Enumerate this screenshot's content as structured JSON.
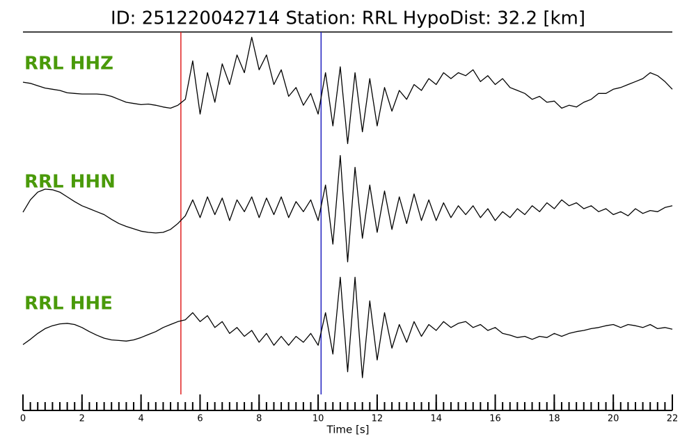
{
  "chart_data": {
    "type": "line",
    "title": "ID: 251220042714   Station: RRL   HypoDist:    32.2 [km]",
    "x_label": "Time [s]",
    "xlim": [
      0,
      22
    ],
    "xticks": [
      0,
      2,
      4,
      6,
      8,
      10,
      12,
      14,
      16,
      18,
      20,
      22
    ],
    "x_minor_step": 0.25,
    "ylim": [
      -1,
      1
    ],
    "label_color": "#4a9a0a",
    "markers": [
      {
        "x": 5.35,
        "color": "#e02020"
      },
      {
        "x": 10.1,
        "color": "#2020c0"
      }
    ],
    "x": [
      0,
      0.25,
      0.5,
      0.75,
      1,
      1.25,
      1.5,
      1.75,
      2,
      2.25,
      2.5,
      2.75,
      3,
      3.25,
      3.5,
      3.75,
      4,
      4.25,
      4.5,
      4.75,
      5,
      5.25,
      5.5,
      5.75,
      6,
      6.25,
      6.5,
      6.75,
      7,
      7.25,
      7.5,
      7.75,
      8,
      8.25,
      8.5,
      8.75,
      9,
      9.25,
      9.5,
      9.75,
      10,
      10.25,
      10.5,
      10.75,
      11,
      11.25,
      11.5,
      11.75,
      12,
      12.25,
      12.5,
      12.75,
      13,
      13.25,
      13.5,
      13.75,
      14,
      14.25,
      14.5,
      14.75,
      15,
      15.25,
      15.5,
      15.75,
      16,
      16.25,
      16.5,
      16.75,
      17,
      17.25,
      17.5,
      17.75,
      18,
      18.25,
      18.5,
      18.75,
      19,
      19.25,
      19.5,
      19.75,
      20,
      20.25,
      20.5,
      20.75,
      21,
      21.25,
      21.5,
      21.75,
      22
    ],
    "series": [
      {
        "name": "RRL HHZ",
        "color": "#000000",
        "values": [
          0.14,
          0.12,
          0.08,
          0.04,
          0.02,
          0.0,
          -0.04,
          -0.05,
          -0.06,
          -0.06,
          -0.06,
          -0.07,
          -0.1,
          -0.15,
          -0.2,
          -0.22,
          -0.24,
          -0.23,
          -0.25,
          -0.28,
          -0.3,
          -0.25,
          -0.15,
          0.5,
          -0.4,
          0.3,
          -0.2,
          0.45,
          0.1,
          0.6,
          0.3,
          0.9,
          0.35,
          0.6,
          0.1,
          0.35,
          -0.1,
          0.05,
          -0.25,
          -0.05,
          -0.4,
          0.3,
          -0.6,
          0.4,
          -0.9,
          0.3,
          -0.7,
          0.2,
          -0.6,
          0.05,
          -0.35,
          0.0,
          -0.15,
          0.1,
          0.0,
          0.2,
          0.1,
          0.3,
          0.2,
          0.3,
          0.25,
          0.35,
          0.15,
          0.25,
          0.1,
          0.2,
          0.05,
          0.0,
          -0.05,
          -0.15,
          -0.1,
          -0.2,
          -0.18,
          -0.3,
          -0.25,
          -0.28,
          -0.2,
          -0.15,
          -0.05,
          -0.05,
          0.02,
          0.05,
          0.1,
          0.15,
          0.2,
          0.3,
          0.25,
          0.15,
          0.02
        ]
      },
      {
        "name": "RRL HHN",
        "color": "#000000",
        "values": [
          -0.06,
          0.15,
          0.28,
          0.33,
          0.32,
          0.28,
          0.2,
          0.12,
          0.05,
          0.0,
          -0.05,
          -0.1,
          -0.18,
          -0.25,
          -0.3,
          -0.34,
          -0.38,
          -0.4,
          -0.41,
          -0.4,
          -0.35,
          -0.25,
          -0.12,
          0.15,
          -0.15,
          0.2,
          -0.1,
          0.18,
          -0.2,
          0.15,
          -0.05,
          0.2,
          -0.15,
          0.18,
          -0.1,
          0.2,
          -0.15,
          0.12,
          -0.05,
          0.15,
          -0.2,
          0.4,
          -0.6,
          0.9,
          -0.9,
          0.7,
          -0.5,
          0.4,
          -0.4,
          0.3,
          -0.35,
          0.2,
          -0.25,
          0.25,
          -0.2,
          0.15,
          -0.2,
          0.1,
          -0.15,
          0.05,
          -0.1,
          0.05,
          -0.15,
          0.0,
          -0.2,
          -0.05,
          -0.15,
          0.0,
          -0.1,
          0.05,
          -0.05,
          0.1,
          0.0,
          0.15,
          0.05,
          0.1,
          0.0,
          0.05,
          -0.05,
          0.0,
          -0.1,
          -0.05,
          -0.12,
          0.0,
          -0.08,
          -0.03,
          -0.05,
          0.02,
          0.05
        ]
      },
      {
        "name": "RRL HHE",
        "color": "#000000",
        "values": [
          -0.24,
          -0.15,
          -0.05,
          0.03,
          0.08,
          0.11,
          0.12,
          0.1,
          0.05,
          -0.02,
          -0.08,
          -0.13,
          -0.16,
          -0.17,
          -0.18,
          -0.16,
          -0.12,
          -0.07,
          -0.02,
          0.05,
          0.1,
          0.15,
          0.18,
          0.3,
          0.15,
          0.25,
          0.05,
          0.15,
          -0.05,
          0.05,
          -0.1,
          0.0,
          -0.2,
          -0.05,
          -0.25,
          -0.1,
          -0.25,
          -0.1,
          -0.2,
          -0.05,
          -0.25,
          0.3,
          -0.4,
          0.9,
          -0.7,
          0.9,
          -0.8,
          0.5,
          -0.5,
          0.3,
          -0.3,
          0.1,
          -0.2,
          0.15,
          -0.1,
          0.1,
          0.0,
          0.15,
          0.05,
          0.12,
          0.15,
          0.05,
          0.1,
          0.0,
          0.05,
          -0.05,
          -0.08,
          -0.12,
          -0.1,
          -0.15,
          -0.1,
          -0.12,
          -0.05,
          -0.1,
          -0.05,
          -0.02,
          0.0,
          0.03,
          0.05,
          0.08,
          0.1,
          0.05,
          0.1,
          0.08,
          0.05,
          0.1,
          0.03,
          0.05,
          0.02
        ]
      }
    ]
  }
}
